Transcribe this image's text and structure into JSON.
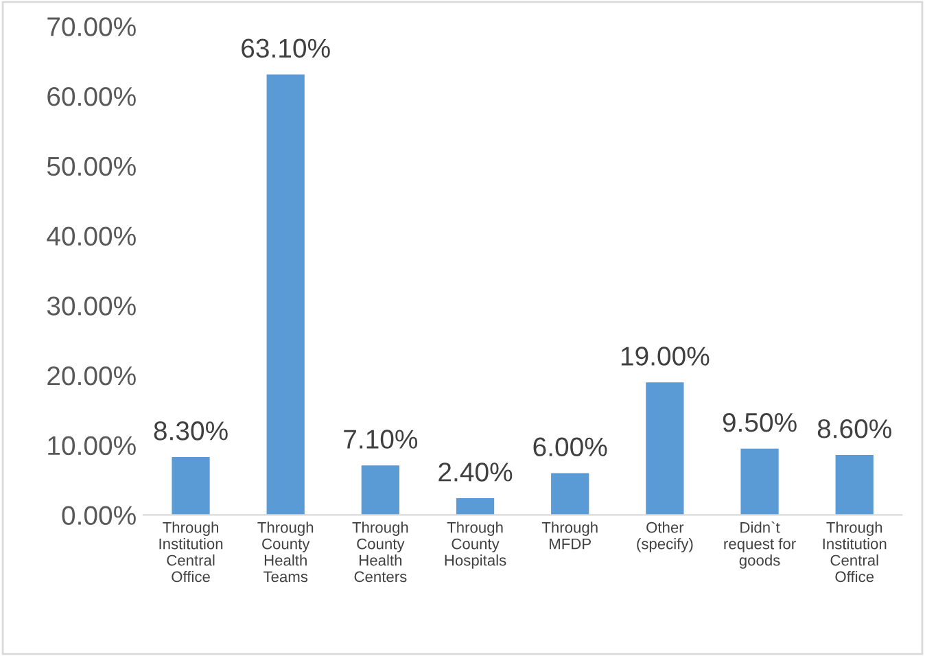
{
  "chart_data": {
    "type": "bar",
    "categories": [
      "Through\nInstitution\nCentral\nOffice",
      "Through\nCounty\nHealth\nTeams",
      "Through\nCounty\nHealth\nCenters",
      "Through\nCounty\nHospitals",
      "Through\nMFDP",
      "Other\n(specify)",
      "Didn`t\nrequest for\ngoods",
      "Through\nInstitution\nCentral\nOffice"
    ],
    "values": [
      8.3,
      63.1,
      7.1,
      2.4,
      6.0,
      19.0,
      9.5,
      8.6
    ],
    "value_labels": [
      "8.30%",
      "63.10%",
      "7.10%",
      "2.40%",
      "6.00%",
      "19.00%",
      "9.50%",
      "8.60%"
    ],
    "color": "#5b9bd5",
    "ylim": [
      0,
      70
    ],
    "yticks": [
      {
        "value": 0,
        "label": "0.00%"
      },
      {
        "value": 10,
        "label": "10.00%"
      },
      {
        "value": 20,
        "label": "20.00%"
      },
      {
        "value": 30,
        "label": "30.00%"
      },
      {
        "value": 40,
        "label": "40.00%"
      },
      {
        "value": 50,
        "label": "50.00%"
      },
      {
        "value": 60,
        "label": "60.00%"
      },
      {
        "value": 70,
        "label": "70.00%"
      }
    ],
    "grid": false
  }
}
